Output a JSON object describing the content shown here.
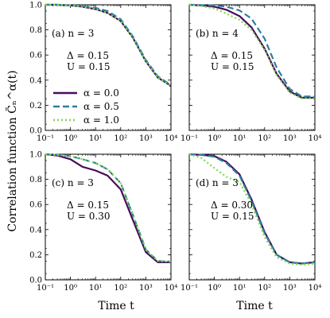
{
  "figure": {
    "ylabel": "Correlation function C̃ₙ^α(t)",
    "xlabel": "Time t"
  },
  "chart_data": [
    {
      "type": "line",
      "panel_label": "(a) n = 3",
      "params": [
        "Δ = 0.15",
        "U = 0.15"
      ],
      "xscale": "log",
      "xlim": [
        0.1,
        10000
      ],
      "ylim": [
        0.0,
        1.0
      ],
      "xticks": [
        "10⁻¹",
        "10⁰",
        "10¹",
        "10²",
        "10³",
        "10⁴"
      ],
      "yticks": [
        "0.0",
        "0.2",
        "0.4",
        "0.6",
        "0.8",
        "1.0"
      ],
      "x": [
        0.1,
        0.3,
        1,
        3,
        10,
        30,
        100,
        300,
        1000,
        3000,
        10000
      ],
      "series": [
        {
          "name": "α = 0.0",
          "color": "#4a0b5c",
          "dash": "solid",
          "values": [
            1.0,
            1.0,
            0.995,
            0.985,
            0.965,
            0.935,
            0.87,
            0.74,
            0.55,
            0.42,
            0.355
          ]
        },
        {
          "name": "α = 0.5",
          "color": "#2c7f9c",
          "dash": "dashed",
          "values": [
            1.0,
            1.0,
            0.997,
            0.99,
            0.975,
            0.95,
            0.885,
            0.75,
            0.56,
            0.43,
            0.36
          ]
        },
        {
          "name": "α = 1.0",
          "color": "#7ed94d",
          "dash": "dotted",
          "values": [
            1.0,
            1.0,
            0.995,
            0.985,
            0.965,
            0.935,
            0.87,
            0.74,
            0.55,
            0.42,
            0.355
          ]
        }
      ]
    },
    {
      "type": "line",
      "panel_label": "(b) n = 4",
      "params": [
        "Δ = 0.15",
        "U = 0.15"
      ],
      "xscale": "log",
      "xlim": [
        0.1,
        10000
      ],
      "ylim": [
        0.0,
        1.0
      ],
      "xticks": [
        "10⁻¹",
        "10⁰",
        "10¹",
        "10²",
        "10³",
        "10⁴"
      ],
      "yticks": [
        "0.0",
        "0.2",
        "0.4",
        "0.6",
        "0.8",
        "1.0"
      ],
      "x": [
        0.1,
        0.3,
        1,
        3,
        10,
        30,
        100,
        300,
        1000,
        3000,
        10000
      ],
      "series": [
        {
          "name": "α = 0.0",
          "color": "#4a0b5c",
          "dash": "solid",
          "values": [
            1.0,
            0.995,
            0.985,
            0.96,
            0.91,
            0.82,
            0.65,
            0.45,
            0.31,
            0.26,
            0.26
          ]
        },
        {
          "name": "α = 0.5",
          "color": "#2c7f9c",
          "dash": "dashed",
          "values": [
            1.0,
            0.998,
            0.995,
            0.985,
            0.955,
            0.89,
            0.73,
            0.5,
            0.33,
            0.27,
            0.27
          ]
        },
        {
          "name": "α = 1.0",
          "color": "#7ed94d",
          "dash": "dotted",
          "values": [
            1.0,
            0.99,
            0.97,
            0.93,
            0.88,
            0.8,
            0.64,
            0.44,
            0.3,
            0.255,
            0.255
          ]
        }
      ]
    },
    {
      "type": "line",
      "panel_label": "(c) n = 3",
      "params": [
        "Δ = 0.15",
        "U = 0.30"
      ],
      "xscale": "log",
      "xlim": [
        0.1,
        10000
      ],
      "ylim": [
        0.0,
        1.0
      ],
      "xticks": [
        "10⁻¹",
        "10⁰",
        "10¹",
        "10²",
        "10³",
        "10⁴"
      ],
      "yticks": [
        "0.0",
        "0.2",
        "0.4",
        "0.6",
        "0.8",
        "1.0"
      ],
      "x": [
        0.1,
        0.3,
        1,
        3,
        10,
        30,
        100,
        300,
        1000,
        3000,
        10000
      ],
      "series": [
        {
          "name": "α = 0.0",
          "color": "#4a0b5c",
          "dash": "solid",
          "values": [
            1.0,
            0.99,
            0.96,
            0.9,
            0.87,
            0.83,
            0.72,
            0.48,
            0.22,
            0.14,
            0.14
          ]
        },
        {
          "name": "α = 0.5",
          "color": "#2c7f9c",
          "dash": "dashed",
          "values": [
            1.0,
            0.995,
            0.985,
            0.96,
            0.93,
            0.88,
            0.77,
            0.52,
            0.24,
            0.15,
            0.145
          ]
        },
        {
          "name": "α = 1.0",
          "color": "#7ed94d",
          "dash": "dotted",
          "values": [
            1.0,
            0.995,
            0.985,
            0.96,
            0.93,
            0.88,
            0.77,
            0.52,
            0.24,
            0.15,
            0.145
          ]
        }
      ]
    },
    {
      "type": "line",
      "panel_label": "(d) n = 3",
      "params": [
        "Δ = 0.30",
        "U = 0.15"
      ],
      "xscale": "log",
      "xlim": [
        0.1,
        10000
      ],
      "ylim": [
        0.0,
        1.0
      ],
      "xticks": [
        "10⁻¹",
        "10⁰",
        "10¹",
        "10²",
        "10³",
        "10⁴"
      ],
      "yticks": [
        "0.0",
        "0.2",
        "0.4",
        "0.6",
        "0.8",
        "1.0"
      ],
      "x": [
        0.1,
        0.3,
        1,
        3,
        10,
        30,
        100,
        300,
        1000,
        3000,
        10000
      ],
      "series": [
        {
          "name": "α = 0.0",
          "color": "#4a0b5c",
          "dash": "solid",
          "values": [
            1.0,
            0.995,
            0.985,
            0.94,
            0.84,
            0.64,
            0.38,
            0.2,
            0.14,
            0.13,
            0.14
          ]
        },
        {
          "name": "α = 0.5",
          "color": "#2c7f9c",
          "dash": "dashed",
          "values": [
            1.0,
            0.995,
            0.98,
            0.93,
            0.83,
            0.63,
            0.37,
            0.2,
            0.14,
            0.13,
            0.14
          ]
        },
        {
          "name": "α = 1.0",
          "color": "#7ed94d",
          "dash": "dotted",
          "values": [
            1.0,
            0.97,
            0.89,
            0.82,
            0.78,
            0.6,
            0.34,
            0.18,
            0.13,
            0.12,
            0.13
          ]
        }
      ]
    }
  ]
}
